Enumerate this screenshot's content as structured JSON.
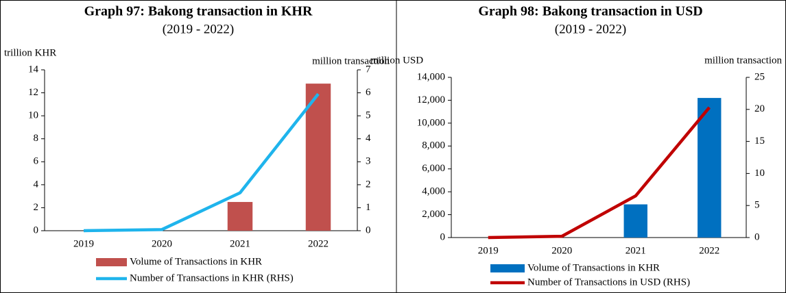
{
  "chart_data": [
    {
      "type": "combo",
      "title": "Graph 97: Bakong transaction in KHR",
      "subtitle": "(2019 - 2022)",
      "y_label": "trillion KHR",
      "y2_label": "million transaction",
      "categories": [
        "2019",
        "2020",
        "2021",
        "2022"
      ],
      "ylim": [
        0,
        14
      ],
      "yticks": [
        0,
        2,
        4,
        6,
        8,
        10,
        12,
        14
      ],
      "y2lim": [
        0,
        7
      ],
      "y2ticks": [
        0,
        1,
        2,
        3,
        4,
        5,
        6,
        7
      ],
      "series": [
        {
          "name": "Volume of Transactions in KHR",
          "type": "bar",
          "color": "#c0504d",
          "values": [
            0,
            0,
            2.5,
            12.8
          ]
        },
        {
          "name": "Number of Transactions in KHR (RHS)",
          "type": "line",
          "axis": "y2",
          "color": "#1fb4ec",
          "values": [
            0,
            0.05,
            1.65,
            5.95
          ]
        }
      ]
    },
    {
      "type": "combo",
      "title": "Graph 98: Bakong transaction in USD",
      "subtitle": "(2019 - 2022)",
      "y_label": "million USD",
      "y2_label": "million transaction",
      "categories": [
        "2019",
        "2020",
        "2021",
        "2022"
      ],
      "ylim": [
        0,
        14000
      ],
      "yticks": [
        0,
        {
          "value": 2000,
          "label": "2,000"
        },
        {
          "value": 4000,
          "label": "4,000"
        },
        {
          "value": 6000,
          "label": "6,000"
        },
        {
          "value": 8000,
          "label": "8,000"
        },
        {
          "value": 10000,
          "label": "10,000"
        },
        {
          "value": 12000,
          "label": "12,000"
        },
        {
          "value": 14000,
          "label": "14,000"
        }
      ],
      "y2lim": [
        0,
        25
      ],
      "y2ticks": [
        0,
        5,
        10,
        15,
        20,
        25
      ],
      "series": [
        {
          "name": "Volume of Transactions in KHR",
          "type": "bar",
          "color": "#0070c0",
          "values": [
            0,
            0,
            2900,
            12200
          ]
        },
        {
          "name": "Number of Transactions in USD (RHS)",
          "type": "line",
          "axis": "y2",
          "color": "#c00000",
          "values": [
            0,
            0.2,
            6.5,
            20.3
          ]
        }
      ]
    }
  ]
}
